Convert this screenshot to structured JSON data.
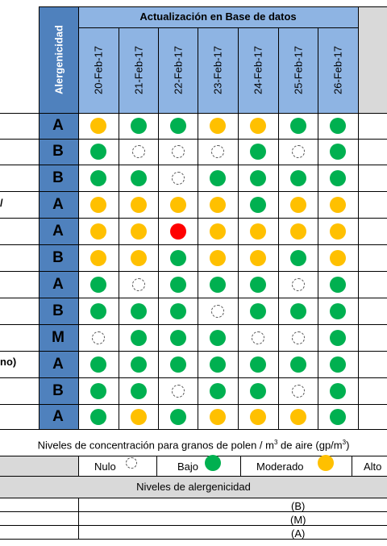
{
  "header": {
    "group_title": "Actualización en Base de datos",
    "alergenicidad_label": "Alergenicidad",
    "dates": [
      "20-Feb-17",
      "21-Feb-17",
      "22-Feb-17",
      "23-Feb-17",
      "24-Feb-17",
      "25-Feb-17",
      "26-Feb-17"
    ]
  },
  "left_fragments": {
    "row4": "/",
    "row10": "no)"
  },
  "rows": [
    {
      "letter": "A",
      "levels": [
        "moderado",
        "bajo",
        "bajo",
        "moderado",
        "moderado",
        "bajo",
        "bajo"
      ]
    },
    {
      "letter": "B",
      "levels": [
        "bajo",
        "nulo",
        "nulo",
        "nulo",
        "bajo",
        "nulo",
        "bajo"
      ]
    },
    {
      "letter": "B",
      "levels": [
        "bajo",
        "bajo",
        "nulo",
        "bajo",
        "bajo",
        "bajo",
        "bajo"
      ]
    },
    {
      "letter": "A",
      "levels": [
        "moderado",
        "moderado",
        "moderado",
        "moderado",
        "bajo",
        "moderado",
        "moderado"
      ]
    },
    {
      "letter": "A",
      "levels": [
        "moderado",
        "moderado",
        "alto",
        "moderado",
        "moderado",
        "moderado",
        "moderado"
      ]
    },
    {
      "letter": "B",
      "levels": [
        "moderado",
        "moderado",
        "bajo",
        "moderado",
        "moderado",
        "bajo",
        "moderado"
      ]
    },
    {
      "letter": "A",
      "levels": [
        "bajo",
        "nulo",
        "bajo",
        "bajo",
        "bajo",
        "nulo",
        "bajo"
      ]
    },
    {
      "letter": "B",
      "levels": [
        "bajo",
        "bajo",
        "bajo",
        "nulo",
        "bajo",
        "bajo",
        "bajo"
      ]
    },
    {
      "letter": "M",
      "levels": [
        "nulo",
        "bajo",
        "bajo",
        "bajo",
        "nulo",
        "nulo",
        "bajo"
      ]
    },
    {
      "letter": "A",
      "levels": [
        "bajo",
        "bajo",
        "bajo",
        "bajo",
        "bajo",
        "bajo",
        "bajo"
      ]
    },
    {
      "letter": "B",
      "levels": [
        "bajo",
        "bajo",
        "nulo",
        "bajo",
        "bajo",
        "nulo",
        "bajo"
      ]
    },
    {
      "letter": "A",
      "levels": [
        "bajo",
        "moderado",
        "bajo",
        "moderado",
        "moderado",
        "moderado",
        "bajo"
      ]
    }
  ],
  "legend": {
    "title_prefix": "Niveles de concentración para granos de polen / m",
    "title_sup": "3",
    "title_middle": " de aire (gp/m",
    "title_sup2": "3",
    "title_suffix": ")",
    "nulo": "Nulo",
    "bajo": "Bajo",
    "moderado": "Moderado",
    "alto": "Alto"
  },
  "alergenicidad_legend": {
    "title": "Niveles de alergenicidad",
    "items": [
      "(B)",
      "(M)",
      "(A)"
    ]
  },
  "colors": {
    "bajo": "#00b050",
    "moderado": "#ffc000",
    "alto": "#ff0000",
    "header_blue": "#8eb4e3",
    "alergenicidad_blue": "#4f81bd",
    "gray": "#d9d9d9"
  }
}
